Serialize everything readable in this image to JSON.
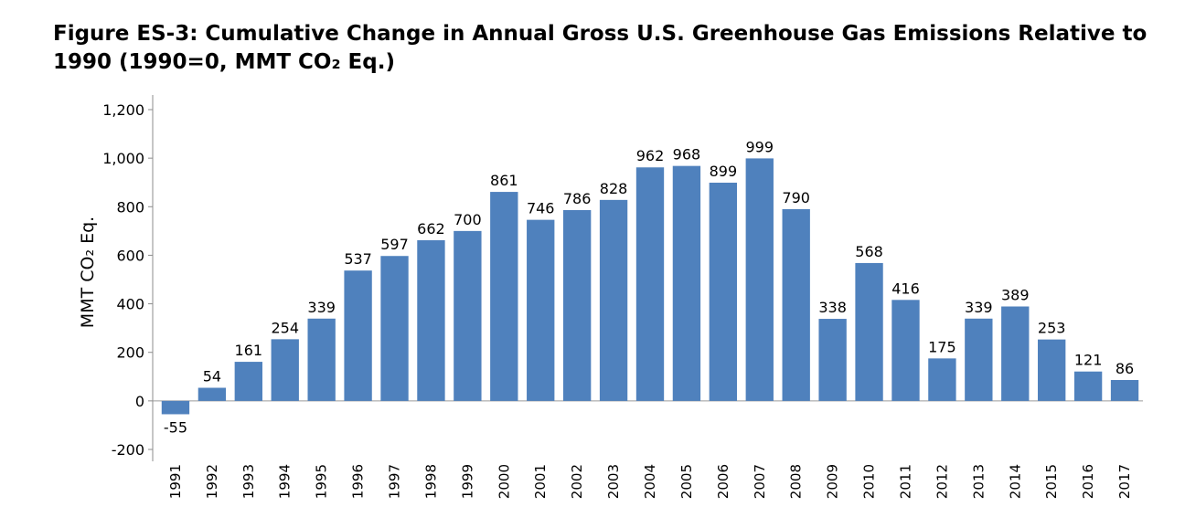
{
  "title": "Figure ES-3:  Cumulative Change in Annual Gross U.S. Greenhouse Gas Emissions Relative to 1990 (1990=0, MMT CO₂ Eq.)",
  "chart_data": {
    "type": "bar",
    "title": "Figure ES-3:  Cumulative Change in Annual Gross U.S. Greenhouse Gas Emissions Relative to 1990 (1990=0, MMT CO₂ Eq.)",
    "xlabel": "",
    "ylabel": "MMT CO₂ Eq.",
    "ylim": [
      -200,
      1200
    ],
    "yticks": [
      -200,
      0,
      200,
      400,
      600,
      800,
      1000,
      1200
    ],
    "ytick_labels": [
      "-200",
      "0",
      "200",
      "400",
      "600",
      "800",
      "1,000",
      "1,200"
    ],
    "grid": false,
    "bar_color": "#4F81BD",
    "categories": [
      "1991",
      "1992",
      "1993",
      "1994",
      "1995",
      "1996",
      "1997",
      "1998",
      "1999",
      "2000",
      "2001",
      "2002",
      "2003",
      "2004",
      "2005",
      "2006",
      "2007",
      "2008",
      "2009",
      "2010",
      "2011",
      "2012",
      "2013",
      "2014",
      "2015",
      "2016",
      "2017"
    ],
    "values": [
      -55,
      54,
      161,
      254,
      339,
      537,
      597,
      662,
      700,
      861,
      746,
      786,
      828,
      962,
      968,
      899,
      999,
      790,
      338,
      568,
      416,
      175,
      339,
      389,
      253,
      121,
      86
    ]
  }
}
